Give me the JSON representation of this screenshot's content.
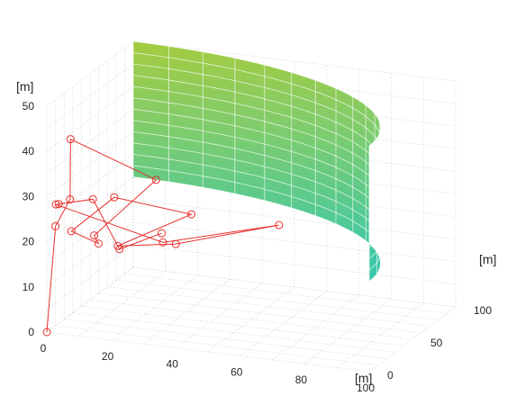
{
  "chart_data": {
    "type": "surface3d",
    "axes": {
      "x": {
        "unit_label": "[m]",
        "range": [
          0,
          100
        ],
        "ticks": [
          0,
          20,
          40,
          60,
          80,
          100
        ],
        "tick_labels": [
          "0",
          "20",
          "40",
          "60",
          "80",
          "100"
        ]
      },
      "y": {
        "unit_label": "[m]",
        "range": [
          0,
          100
        ],
        "ticks": [
          0,
          50,
          100
        ],
        "tick_labels": [
          "0",
          "50",
          "100"
        ]
      },
      "z": {
        "unit_label": "[m]",
        "range": [
          0,
          50
        ],
        "ticks": [
          0,
          10,
          20,
          30,
          40,
          50
        ],
        "tick_labels": [
          "0",
          "10",
          "20",
          "30",
          "40",
          "50"
        ]
      }
    },
    "grid": true,
    "surface": {
      "shape": "quarter-cylinder wall, radius 100 about the origin",
      "radius": 100,
      "z_range": [
        20,
        50
      ],
      "colormap": [
        "#1fc3c0",
        "#45c9a0",
        "#80cc6c",
        "#aacc38"
      ]
    },
    "path": {
      "color": "#e8302e",
      "marker": "circle",
      "points": [
        {
          "x": 0,
          "y": 0,
          "z": 0
        },
        {
          "x": 0,
          "y": 10,
          "z": 22
        },
        {
          "x": 4,
          "y": 12,
          "z": 28
        },
        {
          "x": 2,
          "y": 20,
          "z": 40
        },
        {
          "x": 28,
          "y": 22,
          "z": 33
        },
        {
          "x": 12,
          "y": 10,
          "z": 21
        },
        {
          "x": 16,
          "y": 0,
          "z": 21
        },
        {
          "x": 6,
          "y": 6,
          "z": 22
        },
        {
          "x": 15,
          "y": 22,
          "z": 28
        },
        {
          "x": 40,
          "y": 18,
          "z": 27
        },
        {
          "x": 22,
          "y": 0,
          "z": 21
        },
        {
          "x": 40,
          "y": 0,
          "z": 23
        },
        {
          "x": 72,
          "y": 0,
          "z": 30
        },
        {
          "x": 36,
          "y": 0,
          "z": 23
        },
        {
          "x": 2,
          "y": 3,
          "z": 28
        },
        {
          "x": 1,
          "y": 10,
          "z": 27
        },
        {
          "x": 10,
          "y": 16,
          "z": 28
        },
        {
          "x": 22,
          "y": 2,
          "z": 20
        },
        {
          "x": 34,
          "y": 6,
          "z": 24
        }
      ]
    }
  }
}
